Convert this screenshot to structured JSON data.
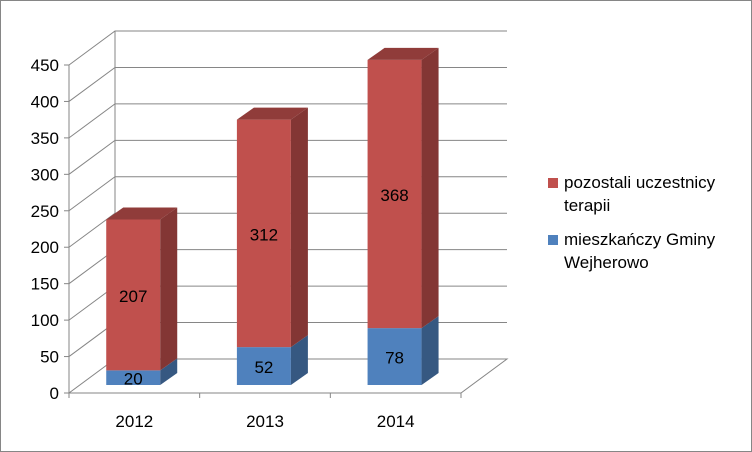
{
  "chart_data": {
    "type": "bar",
    "stacked": true,
    "three_d": true,
    "categories": [
      "2012",
      "2013",
      "2014"
    ],
    "series": [
      {
        "name": "mieszkańczy Gminy Wejherowo",
        "values": [
          20,
          52,
          78
        ],
        "color": "#4f81bd"
      },
      {
        "name": "pozostali uczestnicy terapii",
        "values": [
          207,
          312,
          368
        ],
        "color": "#c0504d"
      }
    ],
    "yticks": [
      "0",
      "50",
      "100",
      "150",
      "200",
      "250",
      "300",
      "350",
      "400",
      "450"
    ],
    "ylim": [
      0,
      450
    ],
    "grid": true,
    "legend_position": "right"
  }
}
